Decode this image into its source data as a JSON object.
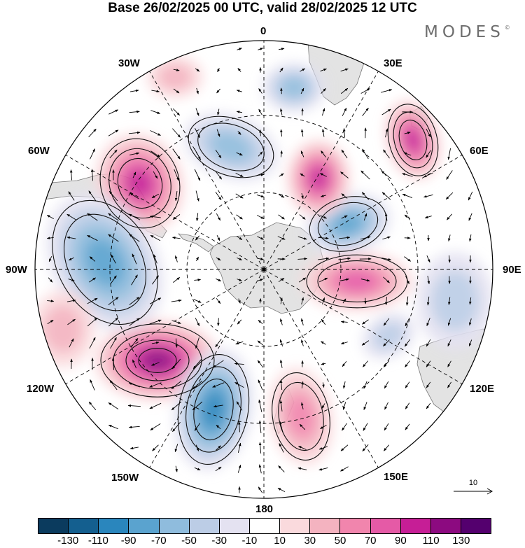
{
  "title": "Base 26/02/2025 00 UTC, valid 28/02/2025 12 UTC",
  "brand": "MODES",
  "brand_mark": "©",
  "longitude_labels": {
    "lon_0": "0",
    "lon_30e": "30E",
    "lon_60e": "60E",
    "lon_90e": "90E",
    "lon_120e": "120E",
    "lon_150e": "150E",
    "lon_180": "180",
    "lon_150w": "150W",
    "lon_120w": "120W",
    "lon_90w": "90W",
    "lon_60w": "60W",
    "lon_30w": "30W"
  },
  "reference_vector_label": "10",
  "colorbar": {
    "colors": [
      "#0b3b5e",
      "#145f8f",
      "#2a86bd",
      "#5aa3cf",
      "#8fbcdd",
      "#bccde6",
      "#e4e2f1",
      "#ffffff",
      "#fadadd",
      "#f4b3c0",
      "#f185ad",
      "#e55aa6",
      "#c61e96",
      "#8c0a80",
      "#54006e"
    ],
    "tick_labels": [
      "-130",
      "-110",
      "-90",
      "-70",
      "-50",
      "-30",
      "-10",
      "10",
      "30",
      "50",
      "70",
      "90",
      "110",
      "130"
    ]
  },
  "map_style": {
    "projection": "south polar stereographic",
    "land_color": "#e3e3e3",
    "graticule": "dashed",
    "vectors": "wind arrows"
  },
  "anomaly_centers": [
    {
      "name": "positive-south-atlantic",
      "sign": "positive",
      "peak": 90
    },
    {
      "name": "positive-east-of-greenwich",
      "sign": "positive",
      "peak": 90
    },
    {
      "name": "positive-indian-ocean",
      "sign": "positive",
      "peak": 70
    },
    {
      "name": "positive-south-pacific",
      "sign": "positive",
      "peak": 110
    },
    {
      "name": "positive-new-zealand",
      "sign": "positive",
      "peak": 50
    },
    {
      "name": "negative-weddell",
      "sign": "negative",
      "peak": -50
    },
    {
      "name": "negative-indian-ocean",
      "sign": "negative",
      "peak": -70
    },
    {
      "name": "negative-amundsen",
      "sign": "negative",
      "peak": -70
    },
    {
      "name": "negative-ross-pacific",
      "sign": "negative",
      "peak": -90
    }
  ]
}
